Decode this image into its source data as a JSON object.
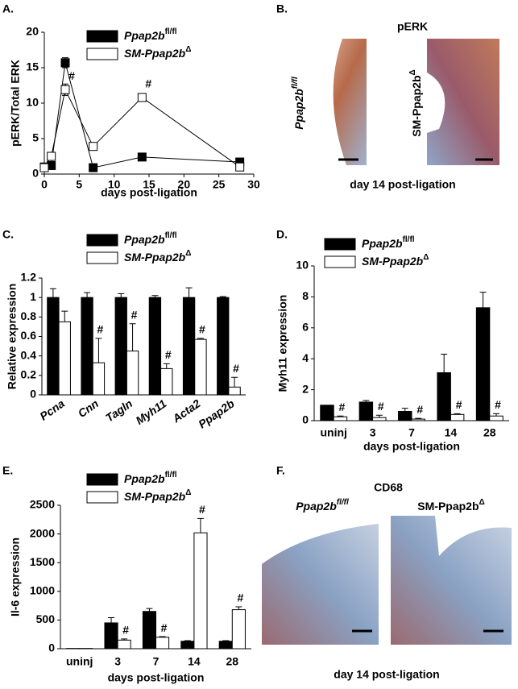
{
  "chart_data": [
    {
      "type": "line",
      "panel": "A.",
      "ylabel": "pERK/Total ERK",
      "xlabel": "days post-ligation",
      "xlim": [
        0,
        30
      ],
      "xticks": [
        0,
        5,
        10,
        15,
        20,
        25,
        30
      ],
      "ylim": [
        0,
        20
      ],
      "yticks": [
        0,
        5,
        10,
        15,
        20
      ],
      "grid": false,
      "series": [
        {
          "name": "Ppap2b",
          "name_sup": "fl/fl",
          "color": "#000000",
          "x": [
            0,
            1,
            3,
            7,
            14,
            28
          ],
          "values": [
            1.0,
            1.2,
            15.7,
            0.9,
            2.4,
            1.7
          ],
          "errors": [
            null,
            null,
            0.7,
            null,
            null,
            null
          ],
          "marks": [
            null,
            null,
            null,
            null,
            null,
            null
          ]
        },
        {
          "name": "SM-Ppap2b",
          "name_sup": "Δ",
          "color": "#ffffff",
          "x": [
            0,
            1,
            3,
            7,
            14,
            28
          ],
          "values": [
            0.9,
            2.5,
            11.9,
            3.9,
            10.8,
            1.0
          ],
          "errors": [
            null,
            null,
            0.8,
            null,
            0.5,
            null
          ],
          "marks": [
            null,
            null,
            "#",
            null,
            "#",
            null
          ]
        }
      ]
    },
    {
      "type": "bar",
      "panel": "C.",
      "ylabel": "Relative expression",
      "categories": [
        "Pcna",
        "Cnn",
        "Tagln",
        "Myh11",
        "Acta2",
        "Ppap2b"
      ],
      "ylim": [
        0,
        1.2
      ],
      "yticks": [
        0,
        0.2,
        0.4,
        0.6,
        0.8,
        1,
        1.2
      ],
      "grid": false,
      "series": [
        {
          "name": "Ppap2b",
          "name_sup": "fl/fl",
          "color": "#000000",
          "values": [
            1,
            1,
            1,
            1,
            1,
            1
          ],
          "errors": [
            0.09,
            0.05,
            0.04,
            0.02,
            0.1,
            0.01
          ],
          "marks": [
            null,
            null,
            null,
            null,
            null,
            null
          ]
        },
        {
          "name": "SM-Ppap2b",
          "name_sup": "Δ",
          "color": "#ffffff",
          "values": [
            0.75,
            0.33,
            0.45,
            0.27,
            0.57,
            0.08
          ],
          "errors": [
            0.11,
            0.25,
            0.28,
            0.05,
            0.01,
            0.1
          ],
          "marks": [
            null,
            "#",
            "#",
            "#",
            "#",
            "#"
          ]
        }
      ]
    },
    {
      "type": "bar",
      "panel": "D.",
      "ylabel": "Myh11 expression",
      "xlabel": "days post-ligation",
      "categories": [
        "uninj",
        "3",
        "7",
        "14",
        "28"
      ],
      "ylim": [
        0,
        10
      ],
      "yticks": [
        0,
        2,
        4,
        6,
        8,
        10
      ],
      "grid": false,
      "series": [
        {
          "name": "Ppap2b",
          "name_sup": "fl/fl",
          "color": "#000000",
          "values": [
            1.0,
            1.2,
            0.6,
            3.1,
            7.3
          ],
          "errors": [
            null,
            0.1,
            0.2,
            1.2,
            1.0
          ],
          "marks": [
            null,
            null,
            null,
            null,
            null
          ]
        },
        {
          "name": "SM-Ppap2b",
          "name_sup": "Δ",
          "color": "#ffffff",
          "values": [
            0.25,
            0.2,
            0.1,
            0.4,
            0.3
          ],
          "errors": [
            0.05,
            0.15,
            0.05,
            0.05,
            0.15
          ],
          "marks": [
            "#",
            "#",
            "#",
            "#",
            "#"
          ]
        }
      ]
    },
    {
      "type": "bar",
      "panel": "E.",
      "ylabel": "Il-6 expression",
      "xlabel": "days post-ligation",
      "categories": [
        "uninj",
        "3",
        "7",
        "14",
        "28"
      ],
      "ylim": [
        0,
        2500
      ],
      "yticks": [
        0,
        500,
        1000,
        1500,
        2000,
        2500
      ],
      "grid": false,
      "series": [
        {
          "name": "Ppap2b",
          "name_sup": "fl/fl",
          "color": "#000000",
          "values": [
            5,
            450,
            650,
            130,
            130
          ],
          "errors": [
            null,
            90,
            50,
            10,
            10
          ],
          "marks": [
            null,
            null,
            null,
            null,
            null
          ]
        },
        {
          "name": "SM-Ppap2b",
          "name_sup": "Δ",
          "color": "#ffffff",
          "values": [
            5,
            150,
            200,
            2020,
            680
          ],
          "errors": [
            null,
            20,
            10,
            250,
            50
          ],
          "marks": [
            null,
            "#",
            "#",
            "#",
            "#"
          ]
        }
      ]
    }
  ],
  "panels": {
    "B": {
      "letter": "B.",
      "title": "pERK",
      "label_left": "Ppap2b",
      "label_left_sup": "fl/fl",
      "label_right": "SM-Ppap2b",
      "label_right_sup": "Δ",
      "caption": "day 14 post-ligation"
    },
    "F": {
      "letter": "F.",
      "title": "CD68",
      "label_left": "Ppap2b",
      "label_left_sup": "fl/fl",
      "label_right": "SM-Ppap2b",
      "label_right_sup": "Δ",
      "caption": "day 14  post-ligation"
    }
  }
}
